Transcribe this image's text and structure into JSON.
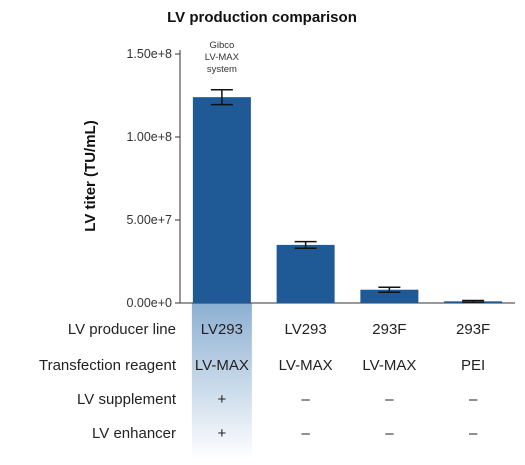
{
  "chart_data": {
    "type": "bar",
    "title": "LV production comparison",
    "ylabel": "LV titer (TU/mL)",
    "xlabel": "",
    "ylim": [
      0,
      150000000
    ],
    "yticks": [
      0,
      50000000,
      100000000,
      150000000
    ],
    "ytick_labels": [
      "0.00e+0",
      "5.00e+7",
      "1.00e+8",
      "1.50e+8"
    ],
    "categories": [
      "LV293 / LV-MAX",
      "LV293 / LV-MAX",
      "293F / LV-MAX",
      "293F / PEI"
    ],
    "values": [
      124000000,
      35000000,
      8000000,
      1000000
    ],
    "error": [
      4500000,
      2000000,
      1500000,
      500000
    ],
    "bar_color": "#1f5a96",
    "highlight_color": "#2f6fae",
    "annotation": [
      "Gibco",
      "LV-MAX",
      "system"
    ],
    "table_rows": [
      {
        "label": "LV producer line",
        "cells": [
          "LV293",
          "LV293",
          "293F",
          "293F"
        ]
      },
      {
        "label": "Transfection reagent",
        "cells": [
          "LV-MAX",
          "LV-MAX",
          "LV-MAX",
          "PEI"
        ]
      },
      {
        "label": "LV supplement",
        "cells": [
          "+",
          "–",
          "–",
          "–"
        ]
      },
      {
        "label": "LV enhancer",
        "cells": [
          "+",
          "–",
          "–",
          "–"
        ]
      }
    ],
    "grid": false,
    "legend": "none"
  }
}
